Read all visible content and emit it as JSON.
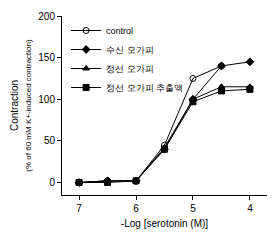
{
  "chart_data": {
    "type": "line",
    "xlabel": "-Log [serotonin (M)]",
    "ylabel": "Contraction\n(% of 60 mM K+-induced contraction)",
    "x": [
      7,
      6.5,
      6,
      5.5,
      5,
      4.5,
      4
    ],
    "series": [
      {
        "name": "control",
        "color": "#000000",
        "marker": "open circle",
        "line_style": "solid",
        "values": [
          0,
          2,
          2,
          45,
          125,
          140,
          null
        ]
      },
      {
        "name": "수신 오가피",
        "color": "#000000",
        "marker": "diamond",
        "line_style": "solid",
        "values": [
          0,
          2,
          2,
          40,
          100,
          140,
          145
        ]
      },
      {
        "name": "정선 오가피",
        "color": "#000000",
        "marker": "triangle",
        "line_style": "solid",
        "values": [
          0,
          2,
          2,
          42,
          100,
          115,
          115
        ]
      },
      {
        "name": "정선 오가피 추출액",
        "color": "#000000",
        "marker": "square",
        "line_style": "solid",
        "values": [
          0,
          0,
          2,
          40,
          97,
          110,
          112
        ]
      }
    ],
    "xlim": [
      7.3,
      3.7
    ],
    "xticks": [
      7,
      6,
      5,
      4
    ],
    "ylim": [
      -15,
      200
    ],
    "yticks": [
      0,
      50,
      100,
      150,
      200
    ],
    "grid": false,
    "legend": "upper left"
  }
}
